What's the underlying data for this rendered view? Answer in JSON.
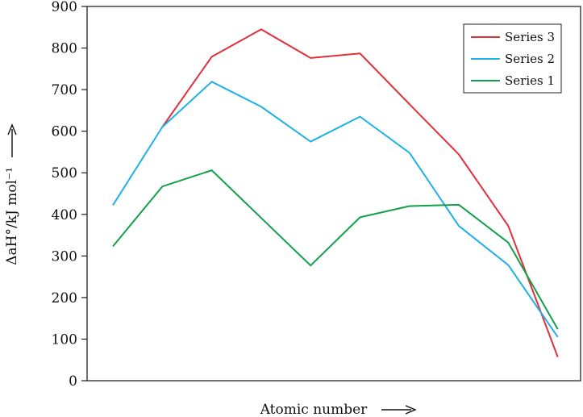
{
  "chart_data": {
    "type": "line",
    "title": "",
    "xlabel": "Atomic number",
    "ylabel": "ΔaH°/kJ mol⁻¹",
    "ylim": [
      0,
      900
    ],
    "yticks": [
      0,
      100,
      200,
      300,
      400,
      500,
      600,
      700,
      800,
      900
    ],
    "grid": false,
    "legend_position": "top-right",
    "x": [
      1,
      2,
      3,
      4,
      5,
      6,
      7,
      8,
      9,
      10
    ],
    "series": [
      {
        "name": "Series 3",
        "color": "#e0303a",
        "values": [
          null,
          610,
          779,
          845,
          776,
          787,
          665,
          544,
          372,
          57
        ]
      },
      {
        "name": "Series 2",
        "color": "#1fb0e6",
        "values": [
          422,
          610,
          719,
          659,
          575,
          635,
          548,
          372,
          278,
          105
        ]
      },
      {
        "name": "Series 1",
        "color": "#12a04a",
        "values": [
          323,
          467,
          506,
          null,
          277,
          393,
          420,
          423,
          332,
          124
        ]
      }
    ]
  }
}
